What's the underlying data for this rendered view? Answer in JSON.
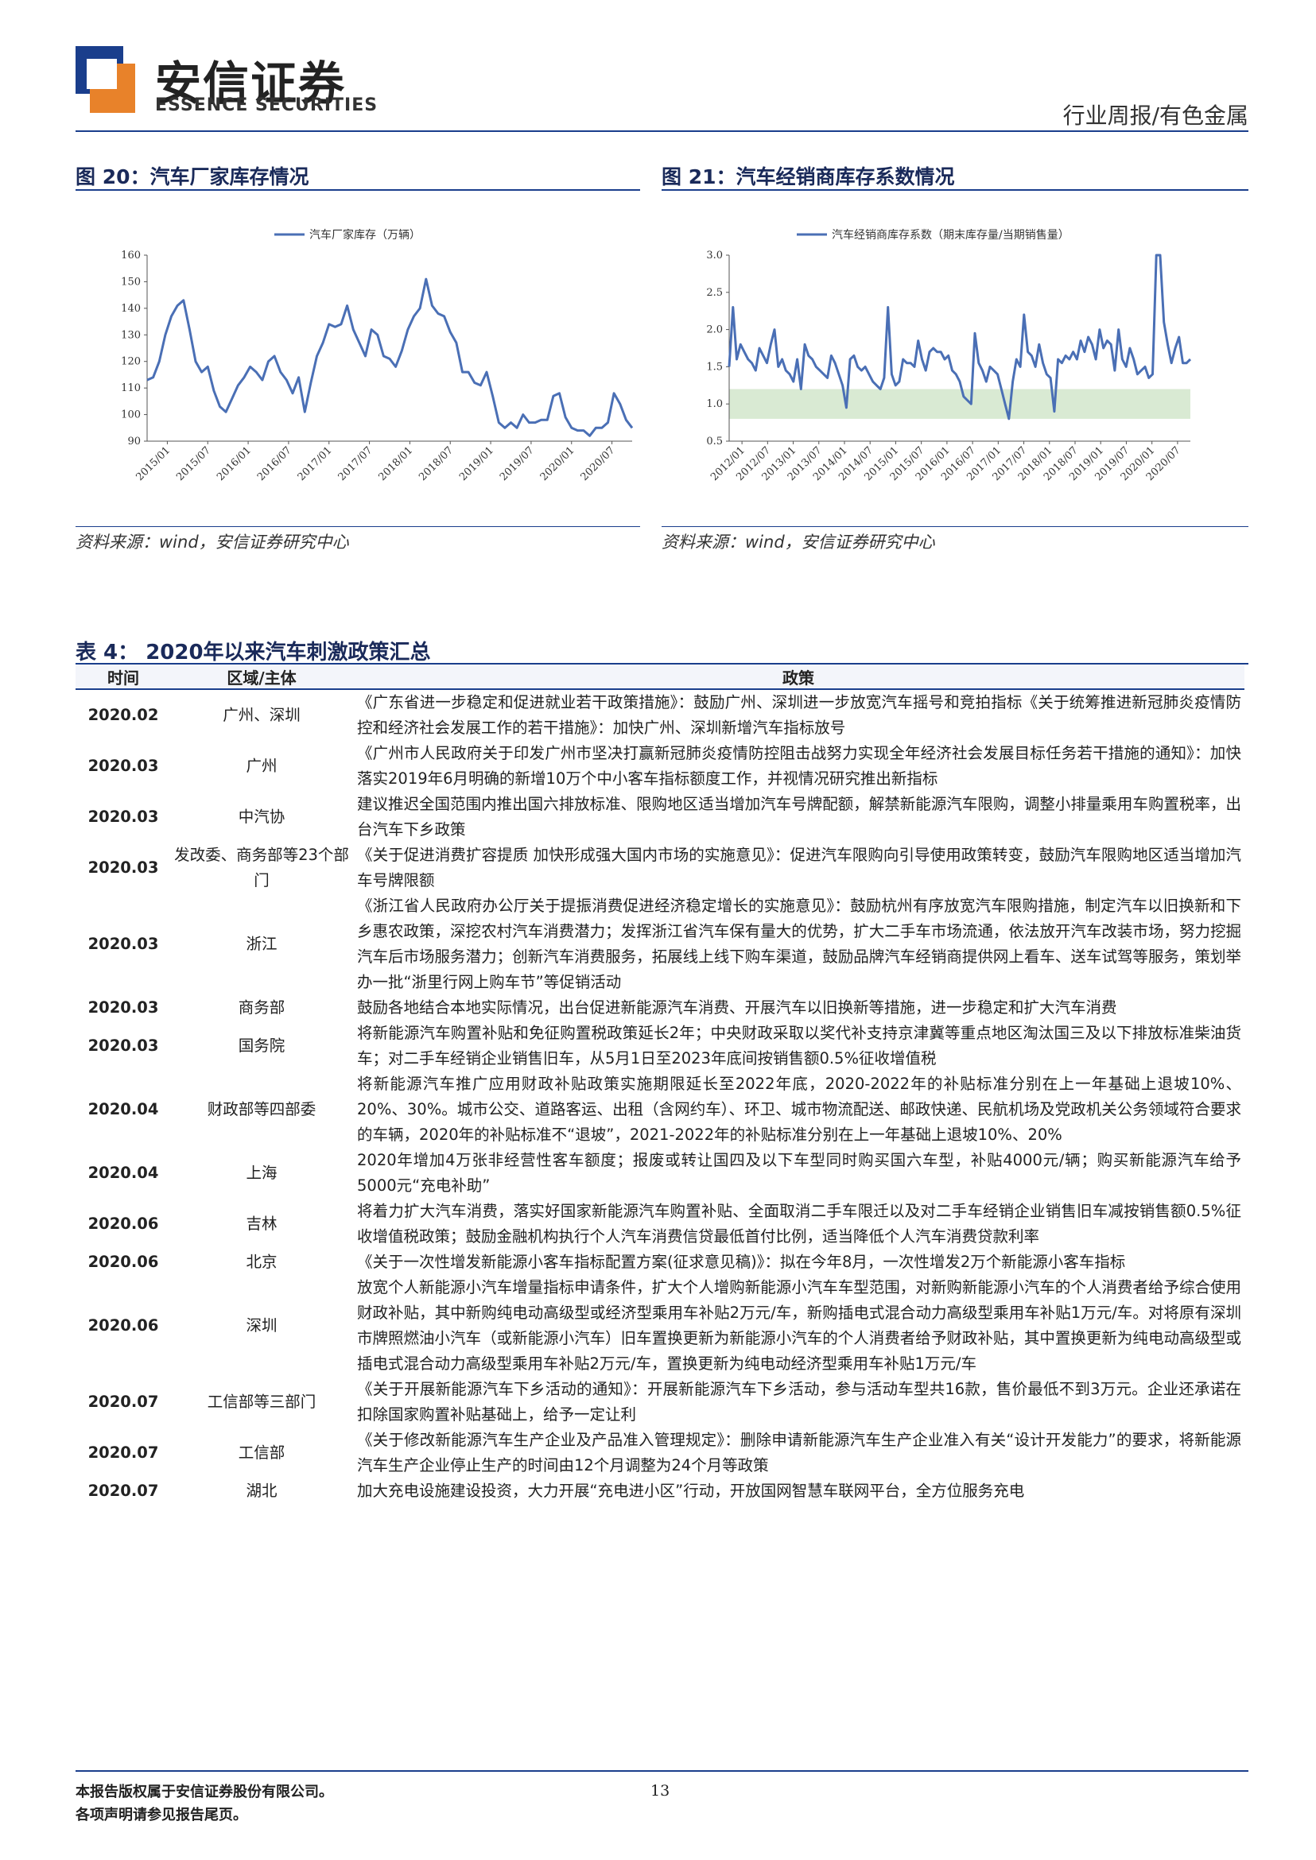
{
  "header": {
    "brand_cn": "安信证券",
    "brand_en": "ESSENCE SECURITIES",
    "report_type": "行业周报/有色金属"
  },
  "figures": [
    {
      "title": "图 20：汽车厂家库存情况",
      "source": "资料来源：wind，安信证券研究中心",
      "chart_data": {
        "type": "line",
        "series": [
          {
            "name": "汽车厂家库存（万辆）",
            "color": "#4a6fb5"
          }
        ],
        "ylim": [
          90,
          160
        ],
        "yticks": [
          "160",
          "150",
          "140",
          "130",
          "120",
          "110",
          "100",
          "90"
        ],
        "xticks": [
          "2015/01",
          "2015/07",
          "2016/01",
          "2016/07",
          "2017/01",
          "2017/07",
          "2018/01",
          "2018/07",
          "2019/01",
          "2019/07",
          "2020/01",
          "2020/07"
        ],
        "values": [
          113,
          114,
          120,
          130,
          137,
          141,
          143,
          132,
          120,
          116,
          118,
          109,
          103,
          101,
          106,
          111,
          114,
          118,
          116,
          113,
          120,
          122,
          116,
          113,
          108,
          114,
          101,
          112,
          122,
          127,
          134,
          133,
          134,
          141,
          132,
          127,
          122,
          132,
          130,
          122,
          121,
          118,
          124,
          132,
          137,
          140,
          151,
          141,
          138,
          137,
          131,
          127,
          116,
          116,
          112,
          111,
          116,
          107,
          97,
          95,
          97,
          95,
          100,
          97,
          97,
          98,
          98,
          107,
          108,
          99,
          95,
          94,
          94,
          92,
          95,
          95,
          97,
          108,
          104,
          98,
          95
        ]
      }
    },
    {
      "title": "图 21：汽车经销商库存系数情况",
      "source": "资料来源：wind，安信证券研究中心",
      "chart_data": {
        "type": "line",
        "series": [
          {
            "name": "汽车经销商库存系数（期末库存量/当期销售量）",
            "color": "#4a6fb5"
          }
        ],
        "ylim": [
          0.5,
          3.0
        ],
        "yticks": [
          "3.0",
          "2.5",
          "2.0",
          "1.5",
          "1.0",
          "0.5"
        ],
        "xticks": [
          "2012/01",
          "2012/07",
          "2013/01",
          "2013/07",
          "2014/01",
          "2014/07",
          "2015/01",
          "2015/07",
          "2016/01",
          "2016/07",
          "2017/01",
          "2017/07",
          "2018/01",
          "2018/07",
          "2019/01",
          "2019/07",
          "2020/01",
          "2020/07"
        ],
        "band": [
          0.8,
          1.2
        ],
        "band_color": "#d9ead3",
        "values": [
          1.5,
          2.3,
          1.6,
          1.8,
          1.7,
          1.6,
          1.55,
          1.45,
          1.75,
          1.65,
          1.55,
          1.8,
          2.0,
          1.5,
          1.6,
          1.45,
          1.4,
          1.3,
          1.6,
          1.2,
          1.8,
          1.65,
          1.6,
          1.5,
          1.45,
          1.4,
          1.35,
          1.65,
          1.55,
          1.4,
          1.25,
          0.95,
          1.6,
          1.65,
          1.5,
          1.45,
          1.5,
          1.4,
          1.3,
          1.25,
          1.2,
          1.35,
          2.3,
          1.4,
          1.25,
          1.3,
          1.6,
          1.55,
          1.55,
          1.5,
          1.85,
          1.6,
          1.45,
          1.7,
          1.75,
          1.7,
          1.7,
          1.6,
          1.65,
          1.45,
          1.4,
          1.3,
          1.1,
          1.05,
          1.0,
          1.95,
          1.55,
          1.45,
          1.3,
          1.5,
          1.45,
          1.4,
          1.2,
          1.0,
          0.8,
          1.3,
          1.6,
          1.5,
          2.2,
          1.7,
          1.65,
          1.5,
          1.8,
          1.55,
          1.4,
          1.35,
          0.9,
          1.6,
          1.55,
          1.65,
          1.6,
          1.7,
          1.6,
          1.85,
          1.7,
          1.9,
          1.8,
          1.6,
          2.0,
          1.75,
          1.85,
          1.8,
          1.45,
          2.0,
          1.6,
          1.5,
          1.75,
          1.6,
          1.4,
          1.45,
          1.5,
          1.35,
          1.4,
          3.2,
          3.0,
          2.1,
          1.8,
          1.55,
          1.75,
          1.9,
          1.55,
          1.55,
          1.6
        ]
      }
    }
  ],
  "table": {
    "title": "表 4：  2020年以来汽车刺激政策汇总",
    "headers": [
      "时间",
      "区域/主体",
      "政策"
    ],
    "rows": [
      {
        "time": "2020.02",
        "area": "广州、深圳",
        "policy": "《广东省进一步稳定和促进就业若干政策措施》：鼓励广州、深圳进一步放宽汽车摇号和竞拍指标《关于统筹推进新冠肺炎疫情防控和经济社会发展工作的若干措施》：加快广州、深圳新增汽车指标放号"
      },
      {
        "time": "2020.03",
        "area": "广州",
        "policy": "《广州市人民政府关于印发广州市坚决打赢新冠肺炎疫情防控阻击战努力实现全年经济社会发展目标任务若干措施的通知》：加快落实2019年6月明确的新增10万个中小客车指标额度工作，并视情况研究推出新指标"
      },
      {
        "time": "2020.03",
        "area": "中汽协",
        "policy": "建议推迟全国范围内推出国六排放标准、限购地区适当增加汽车号牌配额，解禁新能源汽车限购，调整小排量乘用车购置税率，出台汽车下乡政策"
      },
      {
        "time": "2020.03",
        "area": "发改委、商务部等23个部门",
        "policy": "《关于促进消费扩容提质 加快形成强大国内市场的实施意见》：促进汽车限购向引导使用政策转变，鼓励汽车限购地区适当增加汽车号牌限额"
      },
      {
        "time": "2020.03",
        "area": "浙江",
        "policy": "《浙江省人民政府办公厅关于提振消费促进经济稳定增长的实施意见》：鼓励杭州有序放宽汽车限购措施，制定汽车以旧换新和下乡惠农政策，深挖农村汽车消费潜力；发挥浙江省汽车保有量大的优势，扩大二手车市场流通，依法放开汽车改装市场，努力挖掘汽车后市场服务潜力；创新汽车消费服务，拓展线上线下购车渠道，鼓励品牌汽车经销商提供网上看车、送车试驾等服务，策划举办一批“浙里行网上购车节”等促销活动"
      },
      {
        "time": "2020.03",
        "area": "商务部",
        "policy": "鼓励各地结合本地实际情况，出台促进新能源汽车消费、开展汽车以旧换新等措施，进一步稳定和扩大汽车消费"
      },
      {
        "time": "2020.03",
        "area": "国务院",
        "policy": "将新能源汽车购置补贴和免征购置税政策延长2年；中央财政采取以奖代补支持京津冀等重点地区淘汰国三及以下排放标准柴油货车；对二手车经销企业销售旧车，从5月1日至2023年底间按销售额0.5%征收增值税"
      },
      {
        "time": "2020.04",
        "area": "财政部等四部委",
        "policy": "将新能源汽车推广应用财政补贴政策实施期限延长至2022年底，2020-2022年的补贴标准分别在上一年基础上退坡10%、20%、30%。城市公交、道路客运、出租（含网约车）、环卫、城市物流配送、邮政快递、民航机场及党政机关公务领域符合要求的车辆，2020年的补贴标准不“退坡”，2021-2022年的补贴标准分别在上一年基础上退坡10%、20%"
      },
      {
        "time": "2020.04",
        "area": "上海",
        "policy": "2020年增加4万张非经营性客车额度；报废或转让国四及以下车型同时购买国六车型，补贴4000元/辆；购买新能源汽车给予5000元“充电补助”"
      },
      {
        "time": "2020.06",
        "area": "吉林",
        "policy": "将着力扩大汽车消费，落实好国家新能源汽车购置补贴、全面取消二手车限迁以及对二手车经销企业销售旧车减按销售额0.5%征收增值税政策；鼓励金融机构执行个人汽车消费信贷最低首付比例，适当降低个人汽车消费贷款利率"
      },
      {
        "time": "2020.06",
        "area": "北京",
        "policy": "《关于一次性增发新能源小客车指标配置方案(征求意见稿)》：拟在今年8月，一次性增发2万个新能源小客车指标"
      },
      {
        "time": "2020.06",
        "area": "深圳",
        "policy": "放宽个人新能源小汽车增量指标申请条件，扩大个人增购新能源小汽车车型范围，对新购新能源小汽车的个人消费者给予综合使用财政补贴，其中新购纯电动高级型或经济型乘用车补贴2万元/车，新购插电式混合动力高级型乘用车补贴1万元/车。对将原有深圳市牌照燃油小汽车（或新能源小汽车）旧车置换更新为新能源小汽车的个人消费者给予财政补贴，其中置换更新为纯电动高级型或插电式混合动力高级型乘用车补贴2万元/车，置换更新为纯电动经济型乘用车补贴1万元/车"
      },
      {
        "time": "2020.07",
        "area": "工信部等三部门",
        "policy": "《关于开展新能源汽车下乡活动的通知》：开展新能源汽车下乡活动，参与活动车型共16款，售价最低不到3万元。企业还承诺在扣除国家购置补贴基础上，给予一定让利"
      },
      {
        "time": "2020.07",
        "area": "工信部",
        "policy": "《关于修改新能源汽车生产企业及产品准入管理规定》：删除申请新能源汽车生产企业准入有关“设计开发能力”的要求，将新能源汽车生产企业停止生产的时间由12个月调整为24个月等政策"
      },
      {
        "time": "2020.07",
        "area": "湖北",
        "policy": "加大充电设施建设投资，大力开展“充电进小区”行动，开放国网智慧车联网平台，全方位服务充电"
      }
    ]
  },
  "footer": {
    "copyright": "本报告版权属于安信证券股份有限公司。",
    "disclaimer": "各项声明请参见报告尾页。",
    "page_number": "13"
  }
}
